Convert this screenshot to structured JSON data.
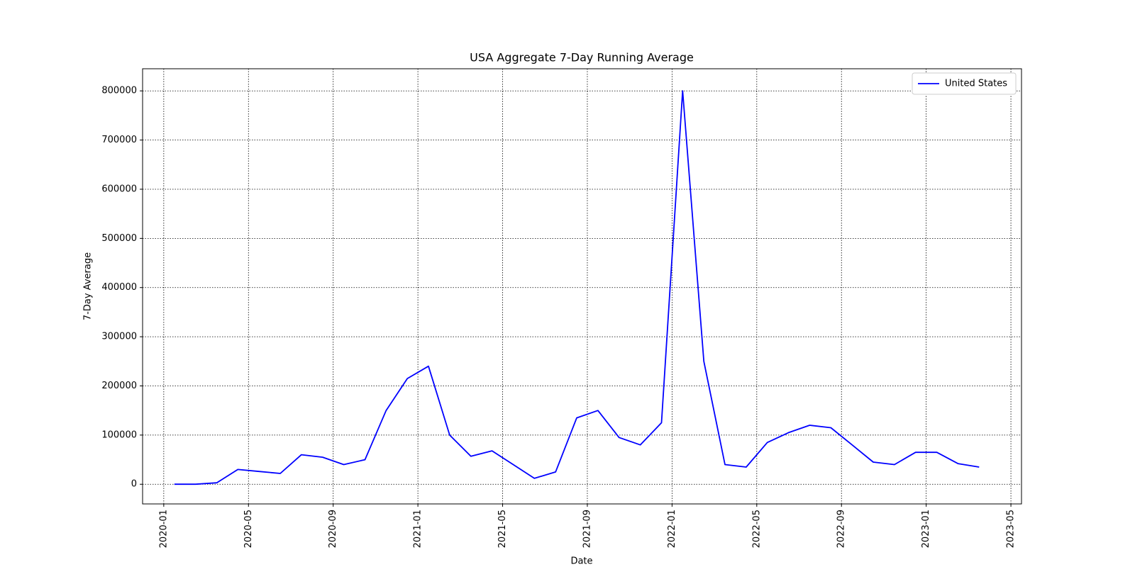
{
  "chart_data": {
    "type": "line",
    "title": "USA Aggregate 7-Day Running Average",
    "xlabel": "Date",
    "ylabel": "7-Day Average",
    "x": [
      "2020-01",
      "2020-02",
      "2020-03",
      "2020-04",
      "2020-05",
      "2020-06",
      "2020-07",
      "2020-08",
      "2020-09",
      "2020-10",
      "2020-11",
      "2020-12",
      "2021-01",
      "2021-02",
      "2021-03",
      "2021-04",
      "2021-05",
      "2021-06",
      "2021-07",
      "2021-08",
      "2021-09",
      "2021-10",
      "2021-11",
      "2021-12",
      "2022-01",
      "2022-02",
      "2022-03",
      "2022-04",
      "2022-05",
      "2022-06",
      "2022-07",
      "2022-08",
      "2022-09",
      "2022-10",
      "2022-11",
      "2022-12",
      "2023-01",
      "2023-02",
      "2023-03"
    ],
    "series": [
      {
        "name": "United States",
        "color": "blue",
        "values": [
          0,
          0,
          3000,
          30000,
          26000,
          22000,
          60000,
          55000,
          40000,
          50000,
          150000,
          215000,
          240000,
          100000,
          57000,
          68000,
          40000,
          12000,
          25000,
          135000,
          150000,
          95000,
          80000,
          125000,
          800000,
          250000,
          40000,
          35000,
          85000,
          105000,
          120000,
          115000,
          80000,
          45000,
          40000,
          65000,
          65000,
          42000,
          35000
        ]
      }
    ],
    "xlim": [
      "2019-12",
      "2023-05"
    ],
    "xticks": [
      "2020-01",
      "2020-05",
      "2020-09",
      "2021-01",
      "2021-05",
      "2021-09",
      "2022-01",
      "2022-05",
      "2022-09",
      "2023-01",
      "2023-05"
    ],
    "ylim": [
      -40000,
      845000
    ],
    "yticks": [
      0,
      100000,
      200000,
      300000,
      400000,
      500000,
      600000,
      700000,
      800000
    ],
    "grid": true,
    "legend": "upper right"
  }
}
